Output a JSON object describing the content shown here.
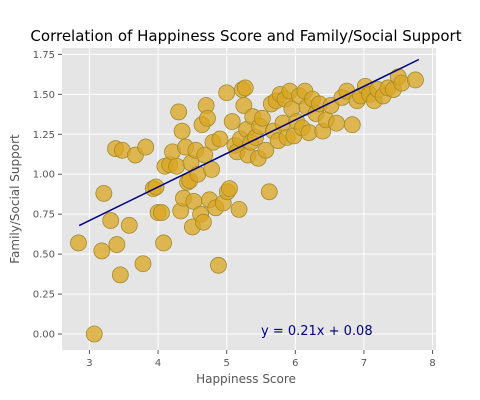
{
  "chart_data": {
    "type": "scatter",
    "title": "Correlation of Happiness Score and Family/Social Support",
    "xlabel": "Happiness Score",
    "ylabel": "Family/Social Support",
    "xlim": [
      2.6,
      8.05
    ],
    "ylim": [
      -0.1,
      1.79
    ],
    "xticks": [
      3,
      4,
      5,
      6,
      7,
      8
    ],
    "yticks": [
      0.0,
      0.25,
      0.5,
      0.75,
      1.0,
      1.25,
      1.5,
      1.75
    ],
    "grid": true,
    "background_color": "#e5e5e5",
    "point_color": "#daa520",
    "line_color": "#000080",
    "annotation": {
      "text": "y = 0.21x + 0.08",
      "x": 5.5,
      "y": 0.0,
      "color": "#000080"
    },
    "regression": {
      "slope": 0.21,
      "intercept": 0.08,
      "x_start": 2.85,
      "x_end": 7.8
    },
    "points": [
      {
        "x": 2.84,
        "y": 0.57
      },
      {
        "x": 3.07,
        "y": 0.0
      },
      {
        "x": 3.18,
        "y": 0.52
      },
      {
        "x": 3.21,
        "y": 0.88
      },
      {
        "x": 3.31,
        "y": 0.71
      },
      {
        "x": 3.38,
        "y": 1.16
      },
      {
        "x": 3.4,
        "y": 0.56
      },
      {
        "x": 3.45,
        "y": 0.37
      },
      {
        "x": 3.48,
        "y": 1.15
      },
      {
        "x": 3.58,
        "y": 0.68
      },
      {
        "x": 3.67,
        "y": 1.12
      },
      {
        "x": 3.78,
        "y": 0.44
      },
      {
        "x": 3.82,
        "y": 1.17
      },
      {
        "x": 3.93,
        "y": 0.91
      },
      {
        "x": 3.97,
        "y": 0.92
      },
      {
        "x": 4.0,
        "y": 0.76
      },
      {
        "x": 4.05,
        "y": 0.76
      },
      {
        "x": 4.08,
        "y": 0.57
      },
      {
        "x": 4.1,
        "y": 1.05
      },
      {
        "x": 4.17,
        "y": 1.06
      },
      {
        "x": 4.21,
        "y": 1.14
      },
      {
        "x": 4.27,
        "y": 1.05
      },
      {
        "x": 4.3,
        "y": 1.39
      },
      {
        "x": 4.33,
        "y": 0.77
      },
      {
        "x": 4.35,
        "y": 1.27
      },
      {
        "x": 4.37,
        "y": 0.85
      },
      {
        "x": 4.4,
        "y": 1.17
      },
      {
        "x": 4.43,
        "y": 0.95
      },
      {
        "x": 4.46,
        "y": 0.96
      },
      {
        "x": 4.48,
        "y": 1.07
      },
      {
        "x": 4.5,
        "y": 0.67
      },
      {
        "x": 4.52,
        "y": 0.83
      },
      {
        "x": 4.55,
        "y": 1.15
      },
      {
        "x": 4.58,
        "y": 1.0
      },
      {
        "x": 4.62,
        "y": 0.75
      },
      {
        "x": 4.64,
        "y": 1.31
      },
      {
        "x": 4.66,
        "y": 0.7
      },
      {
        "x": 4.68,
        "y": 1.12
      },
      {
        "x": 4.7,
        "y": 1.43
      },
      {
        "x": 4.72,
        "y": 1.35
      },
      {
        "x": 4.75,
        "y": 0.84
      },
      {
        "x": 4.78,
        "y": 1.03
      },
      {
        "x": 4.8,
        "y": 1.2
      },
      {
        "x": 4.84,
        "y": 0.79
      },
      {
        "x": 4.88,
        "y": 0.43
      },
      {
        "x": 4.9,
        "y": 1.22
      },
      {
        "x": 4.95,
        "y": 0.82
      },
      {
        "x": 5.0,
        "y": 1.51
      },
      {
        "x": 5.01,
        "y": 0.89
      },
      {
        "x": 5.04,
        "y": 0.91
      },
      {
        "x": 5.08,
        "y": 1.33
      },
      {
        "x": 5.12,
        "y": 1.18
      },
      {
        "x": 5.15,
        "y": 1.14
      },
      {
        "x": 5.18,
        "y": 0.78
      },
      {
        "x": 5.2,
        "y": 1.22
      },
      {
        "x": 5.23,
        "y": 1.53
      },
      {
        "x": 5.25,
        "y": 1.43
      },
      {
        "x": 5.27,
        "y": 1.54
      },
      {
        "x": 5.29,
        "y": 1.28
      },
      {
        "x": 5.31,
        "y": 1.12
      },
      {
        "x": 5.35,
        "y": 1.2
      },
      {
        "x": 5.38,
        "y": 1.36
      },
      {
        "x": 5.42,
        "y": 1.23
      },
      {
        "x": 5.46,
        "y": 1.1
      },
      {
        "x": 5.48,
        "y": 1.3
      },
      {
        "x": 5.52,
        "y": 1.35
      },
      {
        "x": 5.57,
        "y": 1.15
      },
      {
        "x": 5.62,
        "y": 0.89
      },
      {
        "x": 5.65,
        "y": 1.44
      },
      {
        "x": 5.68,
        "y": 1.27
      },
      {
        "x": 5.72,
        "y": 1.46
      },
      {
        "x": 5.75,
        "y": 1.21
      },
      {
        "x": 5.78,
        "y": 1.5
      },
      {
        "x": 5.82,
        "y": 1.32
      },
      {
        "x": 5.85,
        "y": 1.47
      },
      {
        "x": 5.88,
        "y": 1.23
      },
      {
        "x": 5.92,
        "y": 1.52
      },
      {
        "x": 5.95,
        "y": 1.41
      },
      {
        "x": 5.98,
        "y": 1.24
      },
      {
        "x": 6.02,
        "y": 1.33
      },
      {
        "x": 6.06,
        "y": 1.49
      },
      {
        "x": 6.1,
        "y": 1.29
      },
      {
        "x": 6.14,
        "y": 1.52
      },
      {
        "x": 6.17,
        "y": 1.42
      },
      {
        "x": 6.2,
        "y": 1.26
      },
      {
        "x": 6.25,
        "y": 1.47
      },
      {
        "x": 6.3,
        "y": 1.38
      },
      {
        "x": 6.35,
        "y": 1.44
      },
      {
        "x": 6.4,
        "y": 1.27
      },
      {
        "x": 6.45,
        "y": 1.34
      },
      {
        "x": 6.52,
        "y": 1.43
      },
      {
        "x": 6.6,
        "y": 1.32
      },
      {
        "x": 6.68,
        "y": 1.48
      },
      {
        "x": 6.75,
        "y": 1.52
      },
      {
        "x": 6.83,
        "y": 1.31
      },
      {
        "x": 6.9,
        "y": 1.46
      },
      {
        "x": 6.95,
        "y": 1.49
      },
      {
        "x": 7.02,
        "y": 1.55
      },
      {
        "x": 7.08,
        "y": 1.5
      },
      {
        "x": 7.15,
        "y": 1.46
      },
      {
        "x": 7.2,
        "y": 1.53
      },
      {
        "x": 7.28,
        "y": 1.49
      },
      {
        "x": 7.35,
        "y": 1.54
      },
      {
        "x": 7.43,
        "y": 1.53
      },
      {
        "x": 7.5,
        "y": 1.61
      },
      {
        "x": 7.55,
        "y": 1.57
      },
      {
        "x": 7.75,
        "y": 1.59
      }
    ]
  }
}
